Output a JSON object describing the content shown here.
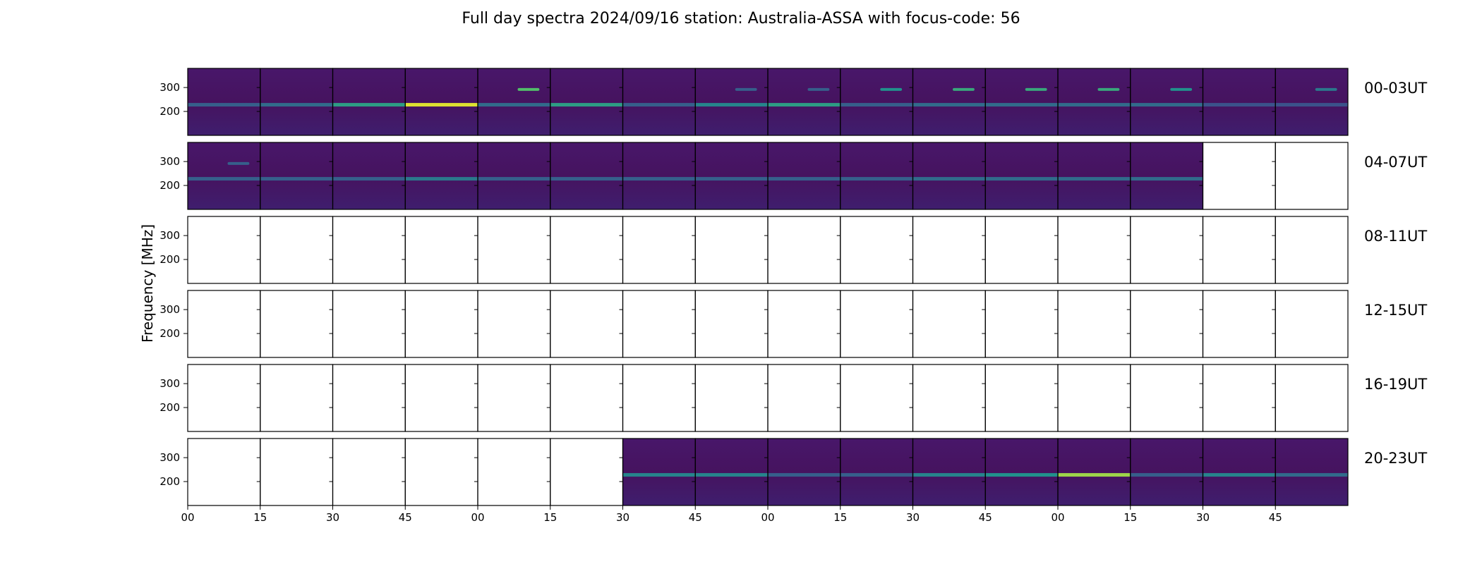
{
  "chart_data": {
    "type": "heatmap",
    "title": "Full day spectra 2024/09/16 station: Australia-ASSA with focus-code: 56",
    "ylabel": "Frequency [MHz]",
    "xlabel": "",
    "y_ticks": [
      300,
      200
    ],
    "x_ticks": [
      "00",
      "15",
      "30",
      "45",
      "00",
      "15",
      "30",
      "45",
      "00",
      "15",
      "30",
      "45",
      "00",
      "15",
      "30",
      "45"
    ],
    "colormap": [
      "#440154",
      "#3b528b",
      "#21918c",
      "#5ec962",
      "#fde725"
    ],
    "background": "#46135f",
    "rows": [
      {
        "label": "00-03UT",
        "panels": [
          1,
          1,
          1,
          1,
          1,
          1,
          1,
          1,
          1,
          1,
          1,
          1,
          1,
          1,
          1,
          1
        ],
        "band_intensity": [
          0.3,
          0.35,
          0.55,
          0.95,
          0.35,
          0.55,
          0.3,
          0.45,
          0.55,
          0.3,
          0.35,
          0.35,
          0.35,
          0.35,
          0.25,
          0.25
        ],
        "band_310_intensity": [
          0.0,
          0.0,
          0.0,
          0.0,
          0.7,
          0.0,
          0.0,
          0.3,
          0.3,
          0.5,
          0.6,
          0.6,
          0.6,
          0.5,
          0.0,
          0.4
        ]
      },
      {
        "label": "04-07UT",
        "panels": [
          1,
          1,
          1,
          1,
          1,
          1,
          1,
          1,
          1,
          1,
          1,
          1,
          1,
          1,
          0,
          0
        ],
        "band_intensity": [
          0.3,
          0.3,
          0.3,
          0.4,
          0.3,
          0.3,
          0.3,
          0.3,
          0.3,
          0.3,
          0.35,
          0.35,
          0.35,
          0.35,
          0,
          0
        ],
        "band_310_intensity": [
          0.3,
          0,
          0,
          0,
          0,
          0,
          0,
          0,
          0,
          0,
          0,
          0,
          0,
          0,
          0,
          0
        ]
      },
      {
        "label": "08-11UT",
        "panels": [
          0,
          0,
          0,
          0,
          0,
          0,
          0,
          0,
          0,
          0,
          0,
          0,
          0,
          0,
          0,
          0
        ],
        "band_intensity": [
          0,
          0,
          0,
          0,
          0,
          0,
          0,
          0,
          0,
          0,
          0,
          0,
          0,
          0,
          0,
          0
        ],
        "band_310_intensity": [
          0,
          0,
          0,
          0,
          0,
          0,
          0,
          0,
          0,
          0,
          0,
          0,
          0,
          0,
          0,
          0
        ]
      },
      {
        "label": "12-15UT",
        "panels": [
          0,
          0,
          0,
          0,
          0,
          0,
          0,
          0,
          0,
          0,
          0,
          0,
          0,
          0,
          0,
          0
        ],
        "band_intensity": [
          0,
          0,
          0,
          0,
          0,
          0,
          0,
          0,
          0,
          0,
          0,
          0,
          0,
          0,
          0,
          0
        ],
        "band_310_intensity": [
          0,
          0,
          0,
          0,
          0,
          0,
          0,
          0,
          0,
          0,
          0,
          0,
          0,
          0,
          0,
          0
        ]
      },
      {
        "label": "16-19UT",
        "panels": [
          0,
          0,
          0,
          0,
          0,
          0,
          0,
          0,
          0,
          0,
          0,
          0,
          0,
          0,
          0,
          0
        ],
        "band_intensity": [
          0,
          0,
          0,
          0,
          0,
          0,
          0,
          0,
          0,
          0,
          0,
          0,
          0,
          0,
          0,
          0
        ],
        "band_310_intensity": [
          0,
          0,
          0,
          0,
          0,
          0,
          0,
          0,
          0,
          0,
          0,
          0,
          0,
          0,
          0,
          0
        ]
      },
      {
        "label": "20-23UT",
        "panels": [
          0,
          0,
          0,
          0,
          0,
          0,
          1,
          1,
          1,
          1,
          1,
          1,
          1,
          1,
          1,
          1
        ],
        "band_intensity": [
          0,
          0,
          0,
          0,
          0,
          0,
          0.45,
          0.45,
          0.3,
          0.3,
          0.45,
          0.5,
          0.85,
          0.3,
          0.45,
          0.35
        ],
        "band_310_intensity": [
          0,
          0,
          0,
          0,
          0,
          0,
          0,
          0,
          0,
          0,
          0,
          0,
          0,
          0,
          0,
          0
        ]
      }
    ]
  }
}
